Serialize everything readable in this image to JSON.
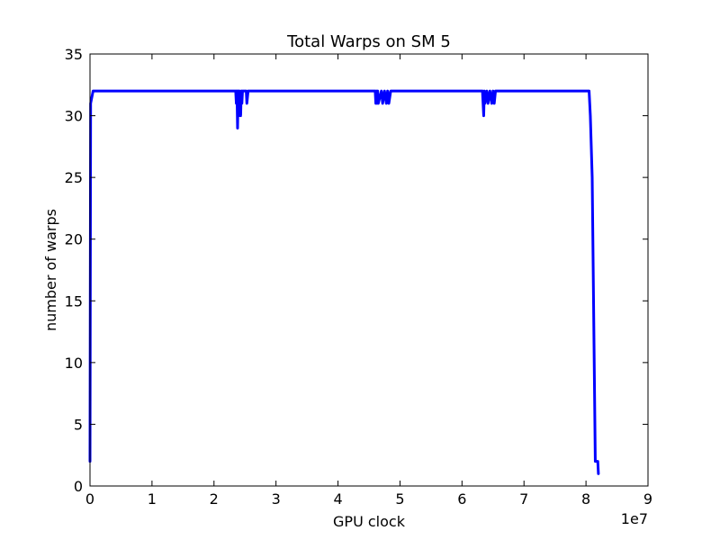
{
  "chart_data": {
    "type": "line",
    "title": "Total Warps on SM 5",
    "xlabel": "GPU clock",
    "ylabel": "number of warps",
    "x_offset_label": "1e7",
    "xlim": [
      0,
      9
    ],
    "ylim": [
      0,
      35
    ],
    "xticks": [
      "0",
      "1",
      "2",
      "3",
      "4",
      "5",
      "6",
      "7",
      "8",
      "9"
    ],
    "yticks": [
      "0",
      "5",
      "10",
      "15",
      "20",
      "25",
      "30",
      "35"
    ],
    "grid": false,
    "legend": "none",
    "series": [
      {
        "color": "#0000ff",
        "x": [
          0,
          0.01,
          0.05,
          2.35,
          2.36,
          2.37,
          2.38,
          2.39,
          2.4,
          2.41,
          2.42,
          2.43,
          2.44,
          2.45,
          2.46,
          2.47,
          2.5,
          2.52,
          2.53,
          2.55,
          2.56,
          2.6,
          4.6,
          4.61,
          4.62,
          4.63,
          4.64,
          4.65,
          4.7,
          4.72,
          4.75,
          4.78,
          4.8,
          4.82,
          4.85,
          6.33,
          6.34,
          6.35,
          6.36,
          6.37,
          6.4,
          6.42,
          6.45,
          6.48,
          6.5,
          6.52,
          6.54,
          8.05,
          8.07,
          8.1,
          8.15,
          8.17,
          8.19,
          8.2
        ],
        "y": [
          2,
          31,
          32,
          32,
          31,
          32,
          29,
          32,
          30,
          32,
          31,
          30,
          32,
          31,
          32,
          32,
          32,
          32,
          31,
          32,
          32,
          32,
          32,
          31,
          32,
          31,
          32,
          31,
          32,
          31,
          32,
          31,
          32,
          31,
          32,
          32,
          31,
          30,
          32,
          31,
          32,
          31,
          32,
          31,
          32,
          31,
          32,
          32,
          30,
          25,
          2,
          2,
          2,
          1
        ]
      }
    ]
  }
}
